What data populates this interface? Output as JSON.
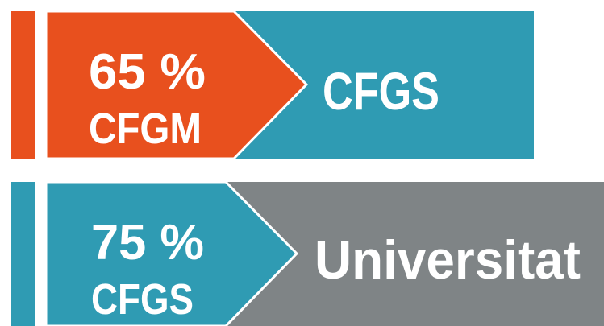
{
  "rows": [
    {
      "percent": "65 %",
      "from": "CFGM",
      "to": "CFGS"
    },
    {
      "percent": "75 %",
      "from": "CFGS",
      "to": "Universitat"
    }
  ]
}
